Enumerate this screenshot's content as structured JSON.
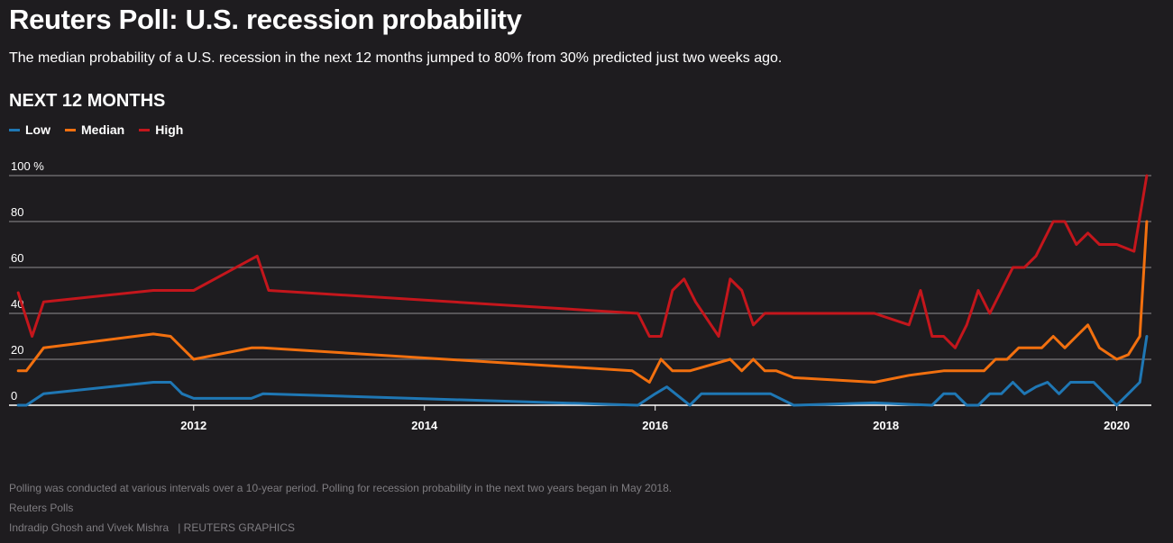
{
  "header": {
    "title": "Reuters Poll: U.S. recession probability",
    "subtitle": "The median probability of a U.S. recession in the next 12 months jumped to 80% from 30% predicted just two weeks ago.",
    "section_title": "NEXT 12 MONTHS"
  },
  "legend": [
    {
      "label": "Low",
      "color": "#1f77b4"
    },
    {
      "label": "Median",
      "color": "#f2700f"
    },
    {
      "label": "High",
      "color": "#c4161c"
    }
  ],
  "footer": {
    "note": "Polling was conducted at various intervals over a 10-year period. Polling for recession probability in the next two years began in May 2018.",
    "source": "Reuters Polls",
    "credit": "Indradip Ghosh and Vivek Mishra",
    "brand": "| REUTERS GRAPHICS"
  },
  "chart_data": {
    "type": "line",
    "title": "NEXT 12 MONTHS",
    "xlim": [
      2010.4,
      2020.3
    ],
    "ylim": [
      0,
      100
    ],
    "y_ticks": [
      0,
      20,
      40,
      60,
      80,
      100
    ],
    "y_tick_labels": [
      "0",
      "20",
      "40",
      "60",
      "80",
      "100 %"
    ],
    "x_ticks": [
      2012,
      2014,
      2016,
      2018,
      2020
    ],
    "x_tick_labels": [
      "2012",
      "2014",
      "2016",
      "2018",
      "2020"
    ],
    "grid": true,
    "legend_position": "top-left",
    "series": [
      {
        "name": "Low",
        "color": "#1f77b4",
        "x": [
          2010.48,
          2010.55,
          2010.7,
          2011.65,
          2011.8,
          2011.9,
          2012.0,
          2012.5,
          2012.6,
          2015.85,
          2016.0,
          2016.1,
          2016.3,
          2016.4,
          2016.6,
          2017.0,
          2017.2,
          2017.9,
          2018.4,
          2018.5,
          2018.6,
          2018.7,
          2018.8,
          2018.9,
          2019.0,
          2019.1,
          2019.2,
          2019.3,
          2019.4,
          2019.5,
          2019.6,
          2019.7,
          2019.8,
          2019.9,
          2020.0,
          2020.1,
          2020.2,
          2020.26
        ],
        "y": [
          0,
          0,
          5,
          10,
          10,
          5,
          3,
          3,
          5,
          0,
          5,
          8,
          0,
          5,
          5,
          5,
          0,
          1,
          0,
          5,
          5,
          0,
          0,
          5,
          5,
          10,
          5,
          8,
          10,
          5,
          10,
          10,
          10,
          5,
          0,
          5,
          10,
          30
        ]
      },
      {
        "name": "Median",
        "color": "#f2700f",
        "x": [
          2010.48,
          2010.55,
          2010.7,
          2011.65,
          2011.8,
          2011.9,
          2012.0,
          2012.5,
          2012.6,
          2015.8,
          2015.95,
          2016.05,
          2016.15,
          2016.3,
          2016.65,
          2016.75,
          2016.85,
          2016.95,
          2017.05,
          2017.2,
          2017.9,
          2018.2,
          2018.5,
          2018.85,
          2018.95,
          2019.05,
          2019.15,
          2019.25,
          2019.35,
          2019.45,
          2019.55,
          2019.65,
          2019.75,
          2019.85,
          2020.0,
          2020.1,
          2020.2,
          2020.26
        ],
        "y": [
          15,
          15,
          25,
          31,
          30,
          25,
          20,
          25,
          25,
          15,
          10,
          20,
          15,
          15,
          20,
          15,
          20,
          15,
          15,
          12,
          10,
          13,
          15,
          15,
          20,
          20,
          25,
          25,
          25,
          30,
          25,
          30,
          35,
          25,
          20,
          22,
          30,
          80
        ]
      },
      {
        "name": "High",
        "color": "#c4161c",
        "x": [
          2010.48,
          2010.6,
          2010.7,
          2011.65,
          2012.0,
          2012.55,
          2012.65,
          2015.85,
          2015.95,
          2016.05,
          2016.15,
          2016.25,
          2016.35,
          2016.55,
          2016.65,
          2016.75,
          2016.85,
          2016.95,
          2017.05,
          2017.9,
          2018.2,
          2018.3,
          2018.4,
          2018.5,
          2018.6,
          2018.7,
          2018.8,
          2018.9,
          2019.0,
          2019.1,
          2019.2,
          2019.3,
          2019.45,
          2019.55,
          2019.65,
          2019.75,
          2019.85,
          2020.0,
          2020.15,
          2020.26
        ],
        "y": [
          49,
          30,
          45,
          50,
          50,
          65,
          50,
          40,
          30,
          30,
          50,
          55,
          45,
          30,
          55,
          50,
          35,
          40,
          40,
          40,
          35,
          50,
          30,
          30,
          25,
          35,
          50,
          40,
          50,
          60,
          60,
          65,
          80,
          80,
          70,
          75,
          70,
          70,
          67,
          100
        ]
      }
    ]
  }
}
